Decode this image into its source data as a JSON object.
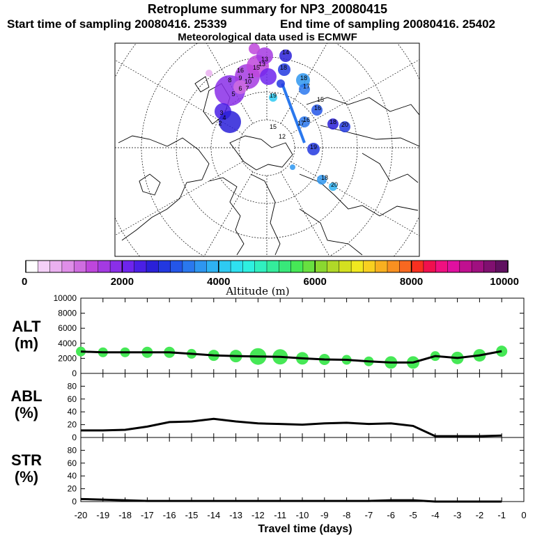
{
  "header": {
    "title": "Retroplume summary for NP3_20080415",
    "start": "Start time of sampling 20080416. 25339",
    "end": "End time of sampling 20080416. 25402",
    "met": "Meteorological data used is ECMWF"
  },
  "colorbar": {
    "label": "Altitude (m)",
    "ticks": [
      "0",
      "2000",
      "4000",
      "6000",
      "8000",
      "10000"
    ],
    "colors": [
      "#ffffff",
      "#f4d0f7",
      "#eab0f0",
      "#df8ee8",
      "#cf6de0",
      "#be46dc",
      "#a43ae2",
      "#8a2fe8",
      "#6e24ed",
      "#4a1fe5",
      "#2a20d8",
      "#2238e0",
      "#2456e8",
      "#2a78ee",
      "#2e96f0",
      "#2eb2f2",
      "#2ecaf2",
      "#2ee0f0",
      "#2ef0e0",
      "#30f0c0",
      "#34ec9c",
      "#38e87a",
      "#46e856",
      "#68e040",
      "#8ad830",
      "#b0d828",
      "#d4e020",
      "#f0e820",
      "#f8d020",
      "#f8b020",
      "#f89020",
      "#f86820",
      "#f83020",
      "#f0104e",
      "#f01080",
      "#e010a0",
      "#c01090",
      "#a01080",
      "#801070",
      "#601060"
    ]
  },
  "map": {
    "labels": [
      "14",
      "13",
      "18",
      "18",
      "17",
      "16",
      "20",
      "18",
      "19",
      "15",
      "16",
      "15",
      "12",
      "13",
      "18",
      "20",
      "19",
      "15",
      "16",
      "17",
      "11",
      "10",
      "8",
      "9",
      "4",
      "3",
      "2",
      "5",
      "6",
      "7"
    ]
  },
  "chart_data": [
    {
      "type": "line",
      "panel": "ALT",
      "ylabel_lines": [
        "ALT",
        "(m)"
      ],
      "ylim": [
        0,
        10000
      ],
      "yticks": [
        "0",
        "2000",
        "4000",
        "6000",
        "8000",
        "10000"
      ],
      "xlim": [
        -20,
        0
      ],
      "x": [
        -20,
        -19,
        -18,
        -17,
        -16,
        -15,
        -14,
        -13,
        -12,
        -11,
        -10,
        -9,
        -8,
        -7,
        -6,
        -5,
        -4,
        -3,
        -2,
        -1
      ],
      "values": [
        2900,
        2800,
        2800,
        2800,
        2800,
        2600,
        2400,
        2300,
        2250,
        2200,
        2000,
        1850,
        1800,
        1600,
        1450,
        1450,
        2300,
        2050,
        2400,
        2950
      ],
      "bubble_sizes": [
        7,
        7,
        7,
        8,
        8,
        7,
        8,
        9,
        12,
        11,
        9,
        8,
        7,
        7,
        9,
        9,
        7,
        9,
        9,
        8
      ]
    },
    {
      "type": "line",
      "panel": "ABL",
      "ylabel_lines": [
        "ABL",
        "(%)"
      ],
      "ylim": [
        0,
        100
      ],
      "yticks": [
        "0",
        "20",
        "40",
        "60",
        "80"
      ],
      "xlim": [
        -20,
        0
      ],
      "x": [
        -20,
        -19,
        -18,
        -17,
        -16,
        -15,
        -14,
        -13,
        -12,
        -11,
        -10,
        -9,
        -8,
        -7,
        -6,
        -5,
        -4,
        -3,
        -2,
        -1
      ],
      "values": [
        11,
        11,
        12,
        17,
        24,
        25,
        29,
        25,
        22,
        21,
        20,
        22,
        23,
        21,
        22,
        18,
        2,
        2,
        2,
        3
      ]
    },
    {
      "type": "line",
      "panel": "STR",
      "ylabel_lines": [
        "STR",
        "(%)"
      ],
      "ylim": [
        0,
        100
      ],
      "yticks": [
        "0",
        "20",
        "40",
        "60",
        "80"
      ],
      "xlim": [
        -20,
        0
      ],
      "x": [
        -20,
        -19,
        -18,
        -17,
        -16,
        -15,
        -14,
        -13,
        -12,
        -11,
        -10,
        -9,
        -8,
        -7,
        -6,
        -5,
        -4,
        -3,
        -2,
        -1
      ],
      "values": [
        4,
        3,
        2,
        1,
        1,
        1,
        1,
        1,
        1,
        1,
        1,
        1,
        1,
        1,
        2,
        2,
        0,
        0,
        0,
        0
      ]
    }
  ],
  "xaxis": {
    "label": "Travel time (days)",
    "ticks": [
      "-20",
      "-19",
      "-18",
      "-17",
      "-16",
      "-15",
      "-14",
      "-13",
      "-12",
      "-11",
      "-10",
      "-9",
      "-8",
      "-7",
      "-6",
      "-5",
      "-4",
      "-3",
      "-2",
      "-1",
      "0"
    ]
  }
}
